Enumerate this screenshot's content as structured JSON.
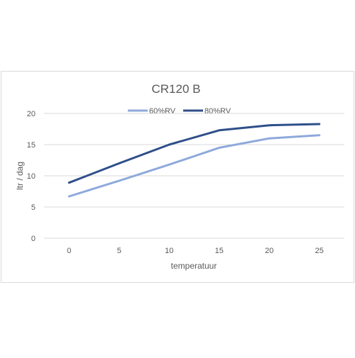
{
  "chart_data": {
    "type": "line",
    "title": "CR120 B",
    "xlabel": "temperatuur",
    "ylabel": "ltr / dag",
    "x": [
      0,
      5,
      10,
      15,
      20,
      25
    ],
    "ylim": [
      0,
      20
    ],
    "yticks": [
      0,
      5,
      10,
      15,
      20
    ],
    "grid": true,
    "legend": "top-center",
    "series": [
      {
        "name": "60%RV",
        "color": "#8ea9db",
        "values": [
          6.7,
          9.2,
          11.8,
          14.5,
          16.0,
          16.5
        ]
      },
      {
        "name": "80%RV",
        "color": "#2f4f8a",
        "values": [
          8.9,
          12.0,
          15.0,
          17.3,
          18.1,
          18.3
        ]
      }
    ]
  }
}
